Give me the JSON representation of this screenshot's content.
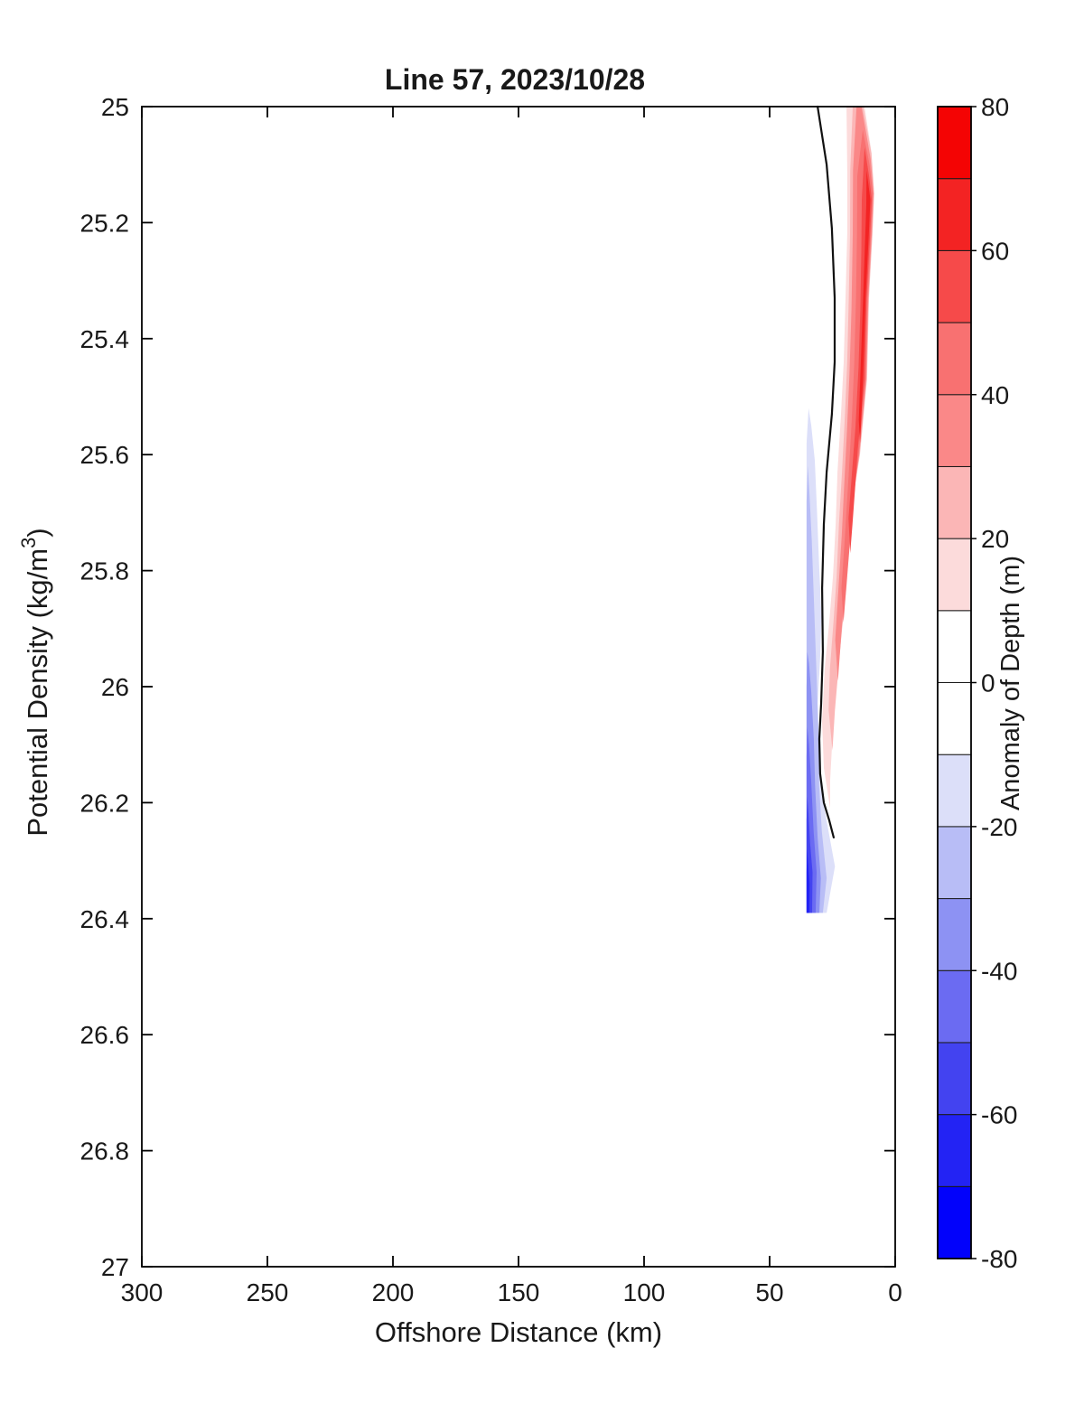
{
  "title": "Line 57, 2023/10/28",
  "x_axis": {
    "label": "Offshore Distance (km)",
    "range": [
      300,
      0
    ],
    "reversed": true,
    "ticks": [
      {
        "v": 300,
        "t": "300"
      },
      {
        "v": 250,
        "t": "250"
      },
      {
        "v": 200,
        "t": "200"
      },
      {
        "v": 150,
        "t": "150"
      },
      {
        "v": 100,
        "t": "100"
      },
      {
        "v": 50,
        "t": "50"
      },
      {
        "v": 0,
        "t": "0"
      }
    ]
  },
  "y_axis": {
    "label_main": "Potential Density (kg/m",
    "label_sup": "3",
    "label_close": ")",
    "range": [
      25,
      27
    ],
    "inverted": true,
    "ticks": [
      {
        "v": 25,
        "t": "25"
      },
      {
        "v": 25.2,
        "t": "25.2"
      },
      {
        "v": 25.4,
        "t": "25.4"
      },
      {
        "v": 25.6,
        "t": "25.6"
      },
      {
        "v": 25.8,
        "t": "25.8"
      },
      {
        "v": 26,
        "t": "26"
      },
      {
        "v": 26.2,
        "t": "26.2"
      },
      {
        "v": 26.4,
        "t": "26.4"
      },
      {
        "v": 26.6,
        "t": "26.6"
      },
      {
        "v": 26.8,
        "t": "26.8"
      },
      {
        "v": 27,
        "t": "27"
      }
    ]
  },
  "colorbar": {
    "label": "Anomaly of Depth (m)",
    "range": [
      -80,
      80
    ],
    "ticks": [
      {
        "v": 80,
        "t": "80"
      },
      {
        "v": 60,
        "t": "60"
      },
      {
        "v": 40,
        "t": "40"
      },
      {
        "v": 20,
        "t": "20"
      },
      {
        "v": 0,
        "t": "0"
      },
      {
        "v": -20,
        "t": "-20"
      },
      {
        "v": -40,
        "t": "-40"
      },
      {
        "v": -60,
        "t": "-60"
      },
      {
        "v": -80,
        "t": "-80"
      }
    ],
    "levels": [
      {
        "from": -80,
        "to": -70,
        "color": "#0202FB"
      },
      {
        "from": -70,
        "to": -60,
        "color": "#2323F4"
      },
      {
        "from": -60,
        "to": -50,
        "color": "#4343F0"
      },
      {
        "from": -50,
        "to": -40,
        "color": "#6B6BF2"
      },
      {
        "from": -40,
        "to": -30,
        "color": "#8D92F3"
      },
      {
        "from": -30,
        "to": -20,
        "color": "#B8BDF6"
      },
      {
        "from": -20,
        "to": -10,
        "color": "#DCDFF9"
      },
      {
        "from": -10,
        "to": 0,
        "color": "#FFFFFF"
      },
      {
        "from": 0,
        "to": 10,
        "color": "#FFFFFF"
      },
      {
        "from": 10,
        "to": 20,
        "color": "#FCDBDB"
      },
      {
        "from": 20,
        "to": 30,
        "color": "#FBB6B6"
      },
      {
        "from": 30,
        "to": 40,
        "color": "#FA8888"
      },
      {
        "from": 40,
        "to": 50,
        "color": "#F87171"
      },
      {
        "from": 50,
        "to": 60,
        "color": "#F64A4A"
      },
      {
        "from": 60,
        "to": 70,
        "color": "#F32323"
      },
      {
        "from": 70,
        "to": 80,
        "color": "#F40404"
      }
    ]
  },
  "chart_data": {
    "type": "filled_contour",
    "x_var": "offshore_distance_km",
    "y_var": "potential_density_kg_m3",
    "z_var": "anomaly_of_depth_m",
    "contour_interval": 10,
    "zero_contour": [
      [
        30.9,
        25.0
      ],
      [
        27.3,
        25.1
      ],
      [
        25.2,
        25.21
      ],
      [
        24.1,
        25.33
      ],
      [
        24.1,
        25.44
      ],
      [
        25.2,
        25.53
      ],
      [
        27.3,
        25.63
      ],
      [
        28.4,
        25.72
      ],
      [
        29.1,
        25.83
      ],
      [
        28.8,
        25.94
      ],
      [
        29.5,
        26.03
      ],
      [
        30.2,
        26.09
      ],
      [
        29.9,
        26.15
      ],
      [
        28.4,
        26.2
      ],
      [
        26.3,
        26.23
      ],
      [
        24.5,
        26.26
      ]
    ],
    "bands": [
      {
        "level": 10,
        "color": "#FCDBDB",
        "points": [
          [
            19.4,
            25.0
          ],
          [
            12.2,
            25.0
          ],
          [
            9.4,
            25.08
          ],
          [
            8.3,
            25.15
          ],
          [
            9.0,
            25.22
          ],
          [
            10.4,
            25.33
          ],
          [
            11.2,
            25.47
          ],
          [
            14.0,
            25.6
          ],
          [
            17.3,
            25.69
          ],
          [
            19.4,
            25.83
          ],
          [
            22.3,
            25.94
          ],
          [
            24.5,
            26.05
          ],
          [
            25.9,
            26.16
          ],
          [
            25.9,
            26.21
          ],
          [
            28.4,
            26.14
          ],
          [
            29.1,
            26.06
          ],
          [
            28.1,
            25.97
          ],
          [
            26.3,
            25.89
          ],
          [
            24.8,
            25.81
          ],
          [
            23.7,
            25.72
          ],
          [
            23.0,
            25.63
          ],
          [
            21.6,
            25.53
          ],
          [
            20.5,
            25.44
          ],
          [
            19.8,
            25.33
          ],
          [
            19.1,
            25.22
          ],
          [
            19.1,
            25.11
          ]
        ]
      },
      {
        "level": 20,
        "color": "#FBB6B6",
        "points": [
          [
            16.9,
            25.0
          ],
          [
            12.8,
            25.0
          ],
          [
            9.5,
            25.08
          ],
          [
            8.4,
            25.15
          ],
          [
            9.1,
            25.22
          ],
          [
            10.5,
            25.33
          ],
          [
            11.3,
            25.47
          ],
          [
            14.1,
            25.6
          ],
          [
            17.3,
            25.69
          ],
          [
            19.6,
            25.83
          ],
          [
            22.0,
            25.94
          ],
          [
            24.0,
            26.04
          ],
          [
            25.0,
            26.11
          ],
          [
            26.5,
            26.04
          ],
          [
            26.0,
            25.97
          ],
          [
            24.6,
            25.89
          ],
          [
            23.3,
            25.81
          ],
          [
            22.4,
            25.72
          ],
          [
            21.2,
            25.63
          ],
          [
            20.0,
            25.53
          ],
          [
            19.1,
            25.44
          ],
          [
            18.5,
            25.33
          ],
          [
            18.0,
            25.22
          ],
          [
            17.9,
            25.11
          ]
        ]
      },
      {
        "level": 30,
        "color": "#FA8888",
        "points": [
          [
            15.4,
            25.0
          ],
          [
            13.4,
            25.0
          ],
          [
            9.8,
            25.09
          ],
          [
            8.6,
            25.15
          ],
          [
            9.3,
            25.22
          ],
          [
            10.7,
            25.33
          ],
          [
            11.5,
            25.47
          ],
          [
            14.3,
            25.6
          ],
          [
            17.0,
            25.68
          ],
          [
            19.3,
            25.8
          ],
          [
            21.3,
            25.9
          ],
          [
            22.8,
            25.99
          ],
          [
            23.9,
            25.92
          ],
          [
            22.6,
            25.83
          ],
          [
            21.3,
            25.74
          ],
          [
            20.4,
            25.66
          ],
          [
            19.2,
            25.56
          ],
          [
            18.2,
            25.46
          ],
          [
            17.4,
            25.35
          ],
          [
            16.9,
            25.22
          ],
          [
            16.8,
            25.11
          ]
        ]
      },
      {
        "level": 40,
        "color": "#F87171",
        "points": [
          [
            12.9,
            25.04
          ],
          [
            10.2,
            25.1
          ],
          [
            8.9,
            25.15
          ],
          [
            9.6,
            25.22
          ],
          [
            11.0,
            25.33
          ],
          [
            11.8,
            25.47
          ],
          [
            14.6,
            25.6
          ],
          [
            15.9,
            25.65
          ],
          [
            17.8,
            25.74
          ],
          [
            19.5,
            25.83
          ],
          [
            20.6,
            25.89
          ],
          [
            21.4,
            25.83
          ],
          [
            20.0,
            25.74
          ],
          [
            18.6,
            25.64
          ],
          [
            17.3,
            25.54
          ],
          [
            16.3,
            25.44
          ],
          [
            15.6,
            25.33
          ],
          [
            15.2,
            25.22
          ],
          [
            15.1,
            25.12
          ]
        ]
      },
      {
        "level": 50,
        "color": "#F64A4A",
        "points": [
          [
            12.2,
            25.07
          ],
          [
            10.4,
            25.12
          ],
          [
            9.3,
            25.16
          ],
          [
            10.0,
            25.22
          ],
          [
            11.4,
            25.33
          ],
          [
            12.2,
            25.47
          ],
          [
            14.9,
            25.59
          ],
          [
            16.0,
            25.66
          ],
          [
            17.0,
            25.72
          ],
          [
            17.9,
            25.77
          ],
          [
            18.6,
            25.71
          ],
          [
            17.2,
            25.63
          ],
          [
            15.8,
            25.55
          ],
          [
            14.6,
            25.45
          ],
          [
            13.9,
            25.35
          ],
          [
            13.5,
            25.25
          ],
          [
            13.3,
            25.16
          ]
        ]
      },
      {
        "level": 60,
        "color": "#F32323",
        "points": [
          [
            11.4,
            25.11
          ],
          [
            9.9,
            25.16
          ],
          [
            10.5,
            25.22
          ],
          [
            11.8,
            25.33
          ],
          [
            12.6,
            25.44
          ],
          [
            13.4,
            25.53
          ],
          [
            14.0,
            25.58
          ],
          [
            14.5,
            25.54
          ],
          [
            13.6,
            25.43
          ],
          [
            12.7,
            25.32
          ],
          [
            11.9,
            25.22
          ],
          [
            11.5,
            25.17
          ]
        ]
      },
      {
        "level": -10,
        "color": "#DCDFF9",
        "points": [
          [
            34.5,
            25.52
          ],
          [
            35.3,
            25.58
          ],
          [
            35.3,
            26.39
          ],
          [
            27.3,
            26.39
          ],
          [
            24.0,
            26.31
          ],
          [
            26.5,
            26.25
          ],
          [
            28.2,
            26.21
          ],
          [
            29.5,
            26.16
          ],
          [
            30.6,
            26.09
          ],
          [
            30.9,
            26.03
          ],
          [
            29.9,
            25.95
          ],
          [
            29.3,
            25.88
          ],
          [
            30.2,
            25.8
          ],
          [
            31.1,
            25.7
          ],
          [
            32.0,
            25.61
          ],
          [
            33.4,
            25.55
          ]
        ]
      },
      {
        "level": -20,
        "color": "#B8BDF6",
        "points": [
          [
            34.8,
            25.62
          ],
          [
            35.3,
            25.68
          ],
          [
            35.3,
            26.39
          ],
          [
            28.8,
            26.39
          ],
          [
            27.3,
            26.33
          ],
          [
            29.2,
            26.25
          ],
          [
            30.3,
            26.17
          ],
          [
            30.6,
            26.07
          ],
          [
            31.4,
            25.97
          ],
          [
            32.3,
            25.86
          ],
          [
            33.2,
            25.75
          ],
          [
            34.1,
            25.67
          ]
        ]
      },
      {
        "level": -30,
        "color": "#8D92F3",
        "points": [
          [
            35.0,
            25.94
          ],
          [
            35.3,
            26.0
          ],
          [
            35.3,
            26.39
          ],
          [
            30.2,
            26.39
          ],
          [
            29.6,
            26.33
          ],
          [
            30.9,
            26.26
          ],
          [
            31.9,
            26.17
          ],
          [
            32.4,
            26.09
          ],
          [
            33.4,
            26.01
          ],
          [
            34.3,
            25.96
          ]
        ]
      },
      {
        "level": -40,
        "color": "#6B6BF2",
        "points": [
          [
            35.0,
            26.07
          ],
          [
            35.3,
            26.12
          ],
          [
            35.3,
            26.39
          ],
          [
            31.7,
            26.39
          ],
          [
            31.3,
            26.32
          ],
          [
            32.5,
            26.25
          ],
          [
            33.5,
            26.16
          ],
          [
            34.3,
            26.1
          ]
        ]
      },
      {
        "level": -50,
        "color": "#4343F0",
        "points": [
          [
            35.0,
            26.19
          ],
          [
            35.3,
            26.23
          ],
          [
            35.3,
            26.39
          ],
          [
            33.1,
            26.39
          ],
          [
            32.9,
            26.32
          ],
          [
            33.9,
            26.27
          ],
          [
            34.5,
            26.22
          ]
        ]
      },
      {
        "level": -60,
        "color": "#2323F4",
        "points": [
          [
            35.1,
            26.28
          ],
          [
            35.3,
            26.32
          ],
          [
            35.3,
            26.39
          ],
          [
            34.2,
            26.39
          ],
          [
            34.1,
            26.34
          ]
        ]
      }
    ]
  }
}
